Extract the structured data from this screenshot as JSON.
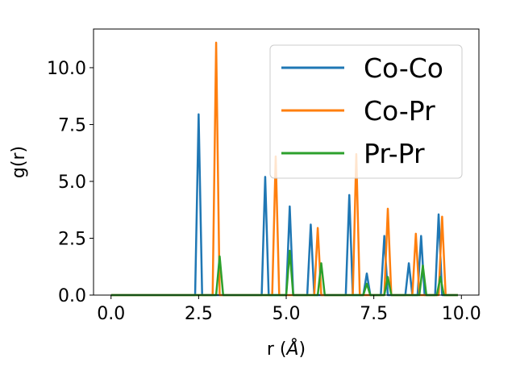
{
  "chart_data": {
    "type": "line",
    "xlabel": "r (",
    "xlabel_unit": "Å",
    "xlabel_close": ")",
    "ylabel": "g(r)",
    "xlim": [
      -0.5,
      10.5
    ],
    "ylim": [
      0.0,
      11.7
    ],
    "xticks": [
      0.0,
      2.5,
      5.0,
      7.5,
      10.0
    ],
    "xtick_labels": [
      "0.0",
      "2.5",
      "5.0",
      "7.5",
      "10.0"
    ],
    "yticks": [
      0.0,
      2.5,
      5.0,
      7.5,
      10.0
    ],
    "ytick_labels": [
      "0.0",
      "2.5",
      "5.0",
      "7.5",
      "10.0"
    ],
    "grid": false,
    "legend_position": "top-right",
    "series": [
      {
        "name": "Co-Co",
        "color": "#1f77b4",
        "peaks": [
          [
            2.5,
            7.95
          ],
          [
            4.4,
            5.2
          ],
          [
            5.1,
            3.9
          ],
          [
            5.7,
            3.1
          ],
          [
            6.8,
            4.4
          ],
          [
            7.3,
            0.95
          ],
          [
            7.8,
            2.6
          ],
          [
            8.5,
            1.4
          ],
          [
            8.85,
            2.6
          ],
          [
            9.35,
            3.55
          ]
        ]
      },
      {
        "name": "Co-Pr",
        "color": "#ff7f0e",
        "peaks": [
          [
            3.0,
            11.1
          ],
          [
            4.7,
            6.1
          ],
          [
            5.9,
            2.95
          ],
          [
            7.0,
            6.2
          ],
          [
            7.9,
            3.8
          ],
          [
            8.7,
            2.7
          ],
          [
            9.45,
            3.45
          ]
        ]
      },
      {
        "name": "Pr-Pr",
        "color": "#2ca02c",
        "peaks": [
          [
            3.1,
            1.7
          ],
          [
            5.1,
            1.95
          ],
          [
            6.0,
            1.4
          ],
          [
            7.3,
            0.5
          ],
          [
            7.9,
            0.8
          ],
          [
            8.9,
            1.3
          ],
          [
            9.4,
            0.8
          ]
        ]
      }
    ]
  }
}
